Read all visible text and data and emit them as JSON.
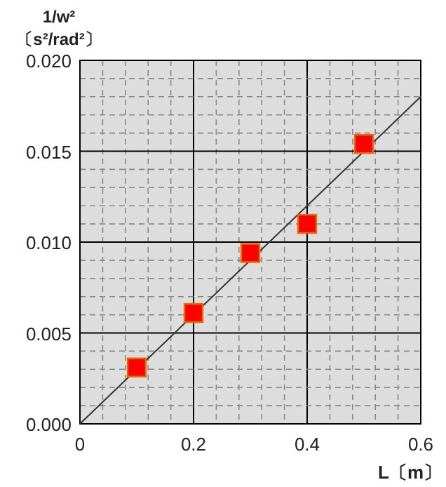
{
  "chart_data": {
    "type": "scatter",
    "xlabel": "L〔m〕",
    "ylabel": "1/w²\n〔s²/rad²〕",
    "x": [
      0.1,
      0.2,
      0.3,
      0.4,
      0.5
    ],
    "series": [
      {
        "color": "#ff0000",
        "marker": "square",
        "values": [
          0.0031,
          0.0061,
          0.0094,
          0.011,
          0.0154
        ]
      },
      {
        "type": "line",
        "color": "#333333",
        "marker": "none",
        "line_style": "solid",
        "x": [
          0,
          0.6
        ],
        "values": [
          0,
          0.018
        ]
      }
    ],
    "xlim": [
      0,
      0.6
    ],
    "ylim": [
      0,
      0.02
    ],
    "xticks": [
      0,
      0.2,
      0.4,
      0.6
    ],
    "yticks": [
      {
        "value": 0,
        "label": "0.000"
      },
      {
        "value": 0.005,
        "label": "0.005"
      },
      {
        "value": 0.01,
        "label": "0.010"
      },
      {
        "value": 0.015,
        "label": "0.015"
      },
      {
        "value": 0.02,
        "label": "0.020"
      }
    ],
    "grid": true
  }
}
